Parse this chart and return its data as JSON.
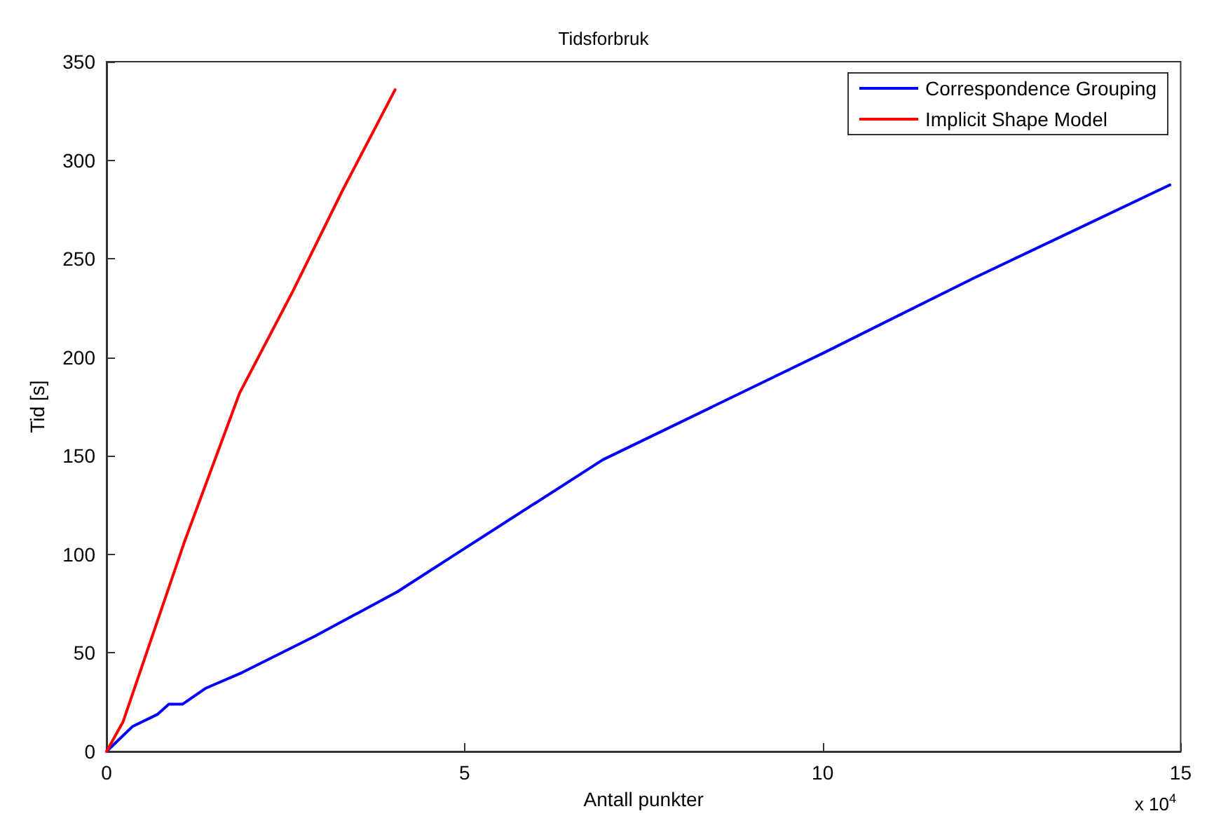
{
  "chart_data": {
    "type": "line",
    "title": "Tidsforbruk",
    "xlabel": "Antall punkter",
    "ylabel": "Tid [s]",
    "annotations": [
      "x 10$^{4}$"
    ],
    "xlim": [
      0,
      15
    ],
    "xticks": [
      0,
      5,
      10,
      15
    ],
    "ylim": [
      0,
      350
    ],
    "yticks": [
      0,
      50,
      100,
      150,
      200,
      250,
      300,
      350
    ],
    "grid": false,
    "legend": "top right",
    "marker": "none",
    "line_style": "solid",
    "series": [
      {
        "name": "Correspondence Grouping",
        "color": "#0000ff",
        "x": [
          0,
          0.36,
          0.71,
          0.87,
          1.06,
          1.38,
          1.89,
          2.91,
          4.06,
          5,
          6.93,
          10,
          12.1,
          14.85
        ],
        "values": [
          0,
          12.6,
          18.8,
          24,
          24,
          32,
          40,
          58.5,
          81,
          103,
          148,
          202,
          240,
          287.5
        ]
      },
      {
        "name": "Implicit Shape Model",
        "color": "#ff0000",
        "x": [
          0,
          0.23,
          1.09,
          1.86,
          2.59,
          3.3,
          4.03
        ],
        "values": [
          0,
          15,
          106.6,
          182,
          232.7,
          285,
          335.8
        ]
      }
    ]
  }
}
